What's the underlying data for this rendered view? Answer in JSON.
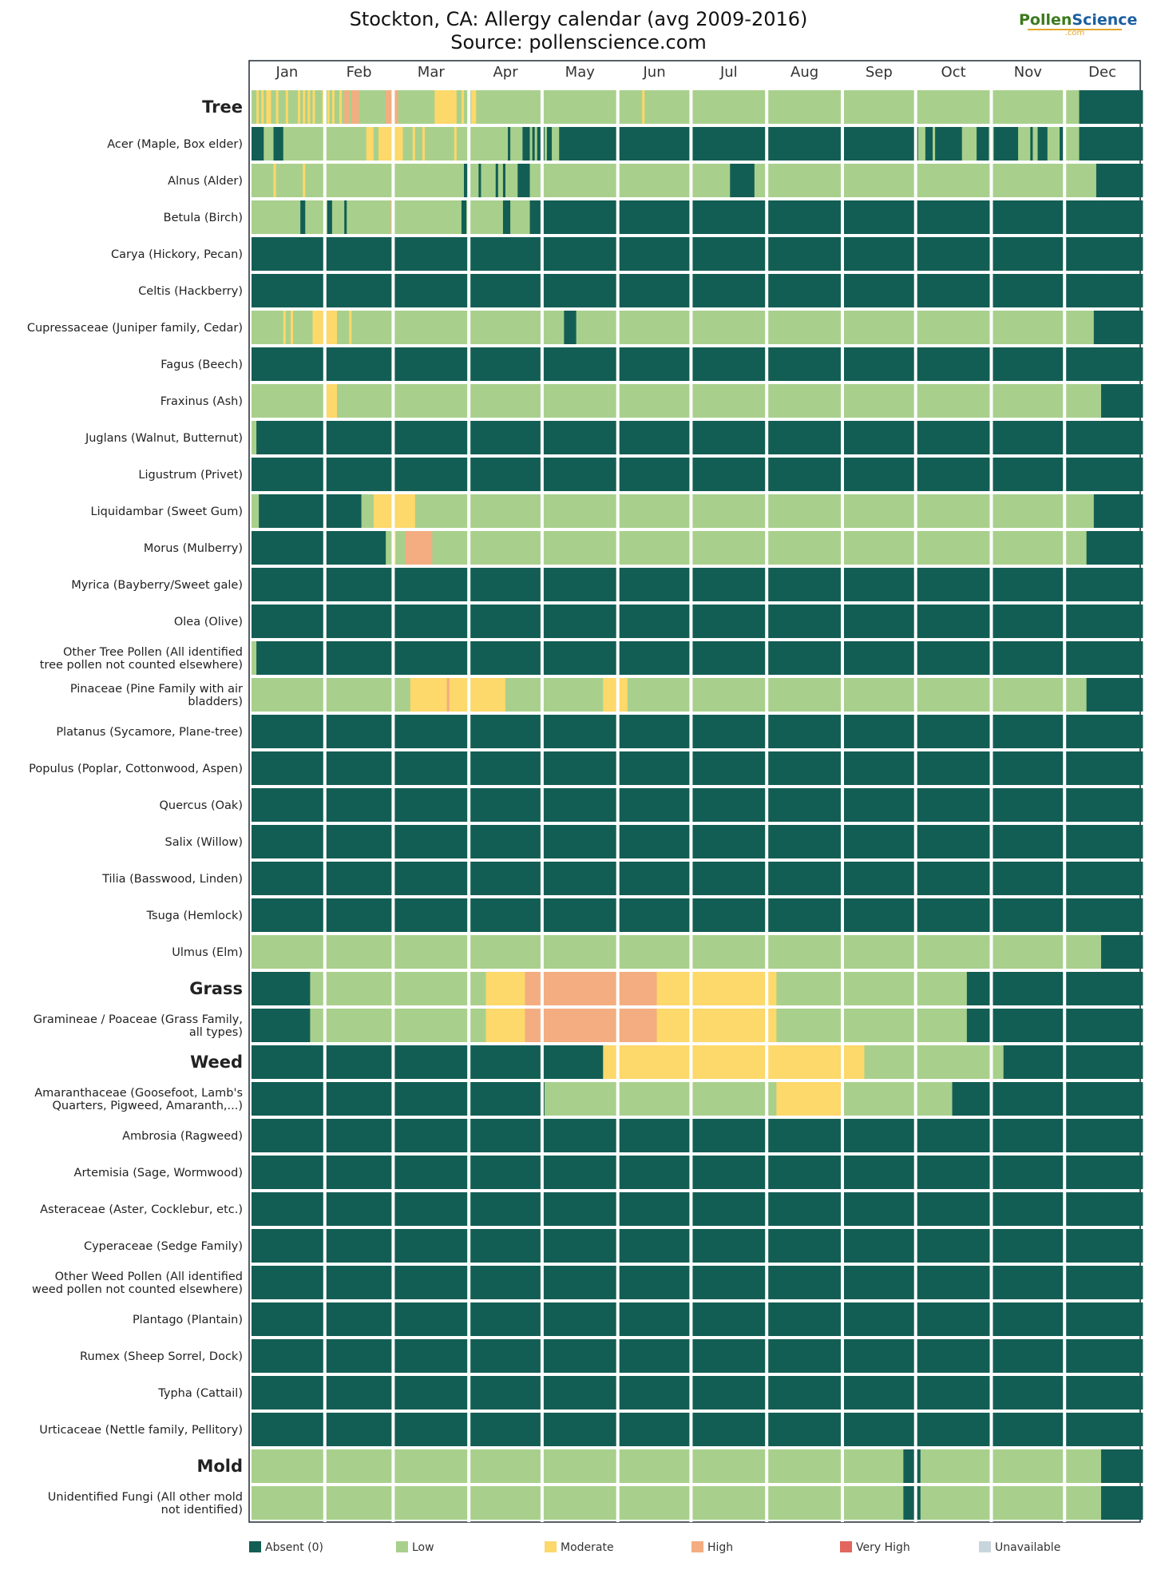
{
  "title_line1": "Stockton, CA: Allergy calendar (avg 2009-2016)",
  "title_line2": "Source: pollenscience.com",
  "logo": {
    "part1": "Pollen",
    "part2": "Science",
    "sub": ".com"
  },
  "colors": {
    "absent": "#135e54",
    "low": "#a8d08c",
    "moderate": "#fdd86a",
    "high": "#f3ad80",
    "very_high": "#e2655e",
    "unavailable": "#c9d5dc"
  },
  "legend": [
    "Absent (0)",
    "Low",
    "Moderate",
    "High",
    "Very High",
    "Unavailable"
  ],
  "chart_data": {
    "type": "heatmap",
    "level_scale": {
      "0": "Absent (0)",
      "1": "Low",
      "2": "Moderate",
      "3": "High",
      "4": "Very High",
      "5": "Unavailable"
    },
    "months": [
      "Jan",
      "Feb",
      "Mar",
      "Apr",
      "May",
      "Jun",
      "Jul",
      "Aug",
      "Sep",
      "Oct",
      "Nov",
      "Dec"
    ],
    "rows": [
      {
        "label": "Tree",
        "category": true,
        "levels": "112121221121112111121212121112121211213313331111111111133333111111111111111222222222112111221111111111111111111111111111111111111111111111111111111111111111111121111111111111111111111111111111111111111111111111111111111111111111111111111111111111111111111111111111111111111111111111111111111111111111111111111111111111111111111111111111111"
      },
      {
        "label": "Acer (Maple, Box elder)",
        "levels": "000001111000011111111111111111111111111111111112221122222222221111211121111111111112111111111111111111111011111000101000100111000000000000000000000000000000000000000000000000000000000000000000000000000000000000000000000000000000000000000000000000000000000000000000000000000111000100000000000111111000001100000000001111101100001111100111111"
      },
      {
        "label": "Alnus (Alder)",
        "levels": "1111111112111111111112111111111111111111111111111111111111111111111111111111111111111110011110111111011011111000001111111111111111111111111111111111111111111111111111111111111111111111111111111111000000000011111111111111111111111111111111111111111111111111111111111111111111111111111111111111111111111111111111111111111111111111111111111111111111"
      },
      {
        "label": "Betula (Birch)",
        "levels": "111111111111111111110011111111100111110111111111111111111311111111111111111111111111110011111111111111100011111111000000000000000000000000000000000000000000000000000000000000000000000000000000000000000000000000000000000000000000000000000000000000000000000000000000000000000000000000000000000000000000000000000000000000000000000000000000000000000000"
      },
      {
        "label": "Carya (Hickory, Pecan)",
        "levels": "000000000000000000000000000000000000000000000000000000000000000000000000000000000000000000000000000000000000000000000000000000000000000000000000000000000000000000000000000000000000000000000000000000000000000000000000000000000000000000000000000000000000000000000000000000000000000000000000000000000000000000000000000000000000000000000000000000000000"
      },
      {
        "label": "Celtis (Hackberry)",
        "levels": "000000000000000000000000000000000000000000000000000000000000000000000000000000000000000000000000000000000000000000000000000000000000000000000000000000000000000000000000000000000000000000000000000000000000000000000000000000000000000000000000000000000000000000000000000000000000000000000000000000000000000000000000000000000000000000000000000000000000"
      },
      {
        "label": "Cupressaceae (Juniper family, Cedar)",
        "levels": "111111111111121121111111122222222221111121111111111111111111111111111111111111111111111111111111111111111111111111111111111111110000011111111111111111111111111111111111111111111111111111111111111111111111111111111111111111111111111111111111111111111111111111111111111111111111111111111111111111111111111111111111111111111111111111111111111111111"
      },
      {
        "label": "Fagus (Beech)",
        "levels": "000000000000000000000000000000000000000000000000000000000000000000000000000000000000000000000000000000000000000000000000000000000000000000000000000000000000000000000000000000000000000000000000000000000000000000000000000000000000000000000000000000000000000000000000000000000000000000000000000000000000000000000000000000000000000000000000000000000000"
      },
      {
        "label": "Fraxinus (Ash)",
        "levels": "111111111111111111111111111111222221111111111111111111111111111111111111111111111111111111111111111111111111111111111111111111111111111111111111111111111111111111111111111111111111111111111111111111111111111111111111111111111111111111111111111111111111111111111111111111111111111111111111111111111111111111111111111111111111111111111111111111111111"
      },
      {
        "label": "Juglans (Walnut, Butternut)",
        "levels": "110000000000000000000000000000000000000000000000000000000000000000000000000000000000000000000000000000000000000000000000000000000000000000000000000000000000000000000000000000000000000000000000000000000000000000000000000000000000000000000000000000000000000000000000000000000000000000000000000000000000000000000000000000000000000000000000000000000000"
      },
      {
        "label": "Ligustrum (Privet)",
        "levels": "000000000000000000000000000000000000000000000000000000000000000000000000000000000000000000000000000000000000000000000000000000000000000000000000000000000000000000000000000000000000000000000000000000000000000000000000000000000000000000000000000000000000000000000000000000000000000000000000000000000000000000000000000000000000000000000000000000000000"
      },
      {
        "label": "Liquidambar (Sweet Gum)",
        "levels": "111000000000000000000000000000000000000000000111112222222222222222211111111111111111111111111111111111111111111111111111111111111111111111111111111111111111111111111111111111111111111111111111111111111111111111111111111111111111111111111111111111111111111111111111111111111111111111111111111111111111111111111111111111111111111111111111111111111"
      },
      {
        "label": "Morus (Mulberry)",
        "levels": "000000000000000000000000000000000000000000000000000000011121111333333333331111111111111111111111111111111111111111111111111111111111111111111111111111111111111111111111111111111111111111111111111111111111111111111111111111111111111111111111111111111111111111111111111111111111111111111111111111111111111111111111111111111111111111111111111111"
      },
      {
        "label": "Myrica (Bayberry/Sweet gale)",
        "levels": "000000000000000000000000000000000000000000000000000000000000000000000000000000000000000000000000000000000000000000000000000000000000000000000000000000000000000000000000000000000000000000000000000000000000000000000000000000000000000000000000000000000000000000000000000000000000000000000000000000000000000000000000000000000000000000000000000000000000"
      },
      {
        "label": "Olea (Olive)",
        "levels": "000000000000000000000000000000000000000000000000000000000000000000000000000000000000000000000000000000000000000000000000000000000000000000000000000000000000000000000000000000000000000000000000000000000000000000000000000000000000000000000000000000000000000000000000000000000000000000000000000000000000000000000000000000000000000000000000000000000000"
      },
      {
        "label": "Other Tree Pollen (All identified\ntree pollen not counted elsewhere)",
        "levels": "110000000000000000000000000000000000000000000000000000000000000000000000000000000000000000000000000000000000000000000000000000000000000000000000000000000000000000000000000000000000000000000000000000000000000000000000000000000000000000000000000000000000000000000000000000000000000000000000000000000000000000000000000000000000000000000000000000000000"
      },
      {
        "label": "Pinaceae (Pine Family with air\nbladders)",
        "levels": "111111111111111111111111111111111111111111111111111111111111111112222222222222223222222222222222222222221111111111111111111111111111111111111111222222222211111111111111111111111111111111111111111111111111111111111111111111111111111111111111111111111111111111111111111111111111111111111111111111111111111111111111111111111111111111111111111111"
      },
      {
        "label": "Platanus (Sycamore, Plane-tree)",
        "levels": "000000000000000000000000000000000000000000000000000000000000000000000000000000000000000000000000000000000000000000000000000000000000000000000000000000000000000000000000000000000000000000000000000000000000000000000000000000000000000000000000000000000000000000000000000000000000000000000000000000000000000000000000000000000000000000000000000000000000"
      },
      {
        "label": "Populus (Poplar, Cottonwood, Aspen)",
        "levels": "000000000000000000000000000000000000000000000000000000000000000000000000000000000000000000000000000000000000000000000000000000000000000000000000000000000000000000000000000000000000000000000000000000000000000000000000000000000000000000000000000000000000000000000000000000000000000000000000000000000000000000000000000000000000000000000000000000000000"
      },
      {
        "label": "Quercus (Oak)",
        "levels": "000000000000000000000000000000000000000000000000000000000000000000000000000000000000000000000000000000000000000000000000000000000000000000000000000000000000000000000000000000000000000000000000000000000000000000000000000000000000000000000000000000000000000000000000000000000000000000000000000000000000000000000000000000000000000000000000000000000000"
      },
      {
        "label": "Salix (Willow)",
        "levels": "000000000000000000000000000000000000000000000000000000000000000000000000000000000000000000000000000000000000000000000000000000000000000000000000000000000000000000000000000000000000000000000000000000000000000000000000000000000000000000000000000000000000000000000000000000000000000000000000000000000000000000000000000000000000000000000000000000000000"
      },
      {
        "label": "Tilia (Basswood, Linden)",
        "levels": "000000000000000000000000000000000000000000000000000000000000000000000000000000000000000000000000000000000000000000000000000000000000000000000000000000000000000000000000000000000000000000000000000000000000000000000000000000000000000000000000000000000000000000000000000000000000000000000000000000000000000000000000000000000000000000000000000000000000"
      },
      {
        "label": "Tsuga (Hemlock)",
        "levels": "000000000000000000000000000000000000000000000000000000000000000000000000000000000000000000000000000000000000000000000000000000000000000000000000000000000000000000000000000000000000000000000000000000000000000000000000000000000000000000000000000000000000000000000000000000000000000000000000000000000000000000000000000000000000000000000000000000000000"
      },
      {
        "label": "Ulmus (Elm)",
        "levels": "111111111111111111111111111111111111111111111111111111111111111111111111111111111111111111111111111111111111111111111111111111111111111111111111111111111111111111111111111111111111111111111111111111111111111111111111111111111111111111111111111111111111111111111111111111111111111111111111111111111111111111111111111111111111111111111111111111111111"
      },
      {
        "label": "Grass",
        "category": true,
        "levels": "000000000000000000000000111111111111111111111111111111111111111111111111111111111111111111111111222222222222222233333333333333333333333333333333333333333333333333333322222222222222222222222222222222222222222222222221111111111111111111111111111111111111111111111111111111111111111111111111111110000000000000000000000000000000000000000000000000000000"
      },
      {
        "label": "Gramineae / Poaceae (Grass Family,\nall types)",
        "levels": "000000000000000000000000111111111111111111111111111111111111111111111111111111111111111111111111222222222222222233333333333333333333333333333333333333333333333333333322222222222222222222222222222222222222222222222221111111111111111111111111111111111111111111111111111111111111111111111111111110000000000000000000000000000000000000000000000000000000"
      },
      {
        "label": "Weed",
        "category": true,
        "levels": "000000000000000000000000000000000000000000000000000000000000000000000000000000000000000000000000000000000000000000000000000000000000000000000000222222222222222222222222222222222222222222222222222222222222222222222222222222222222222222222222222222222221111111111111111111111111111111111111111111111111111111110000000000000000000000000000000000000"
      },
      {
        "label": "Amaranthaceae (Goosefoot, Lamb's\nQuarters, Pigweed, Amaranth,...)",
        "levels": "000000000000000000000000000000000000000000000000000000000000000000000000000000000000000000000000000000000000000000000000111111111111111111111111111111111111111111111111111111111111111111111111111111111111111111111112222222222222222222222222221111111111111111111111111111111111111111111110000000000000000000000000000000000000000000000000000000000"
      },
      {
        "label": "Ambrosia (Ragweed)",
        "levels": "000000000000000000000000000000000000000000000000000000000000000000000000000000000000000000000000000000000000000000000000000000000000000000000000000000000000000000000000000000000000000000000000000000000000000000000000000000000000000000000000000000000000000000000000000000000000000000000000000000000000000000000000000000000000000000000000000000000000"
      },
      {
        "label": "Artemisia (Sage, Wormwood)",
        "levels": "000000000000000000000000000000000000000000000000000000000000000000000000000000000000000000000000000000000000000000000000000000000000000000000000000000000000000000000000000000000000000000000000000000000000000000000000000000000000000000000000000000000000000000000000000000000000000000000000000000000000000000000000000000000000000000000000000000000000"
      },
      {
        "label": "Asteraceae (Aster, Cocklebur, etc.)",
        "levels": "000000000000000000000000000000000000000000000000000000000000000000000000000000000000000000000000000000000000000000000000000000000000000000000000000000000000000000000000000000000000000000000000000000000000000000000000000000000000000000000000000000000000000000000000000000000000000000000000000000000000000000000000000000000000000000000000000000000000"
      },
      {
        "label": "Cyperaceae (Sedge Family)",
        "levels": "000000000000000000000000000000000000000000000000000000000000000000000000000000000000000000000000000000000000000000000000000000000000000000000000000000000000000000000000000000000000000000000000000000000000000000000000000000000000000000000000000000000000000000000000000000000000000000000000000000000000000000000000000000000000000000000000000000000000"
      },
      {
        "label": "Other Weed Pollen (All identified\nweed pollen not counted elsewhere)",
        "levels": "000000000000000000000000000000000000000000000000000000000000000000000000000000000000000000000000000000000000000000000000000000000000000000000000000000000000000000000000000000000000000000000000000000000000000000000000000000000000000000000000000000000000000000000000000000000000000000000000000000000000000000000000000000000000000000000000000000000000"
      },
      {
        "label": "Plantago (Plantain)",
        "levels": "000000000000000000000000000000000000000000000000000000000000000000000000000000000000000000000000000000000000000000000000000000000000000000000000000000000000000000000000000000000000000000000000000000000000000000000000000000000000000000000000000000000000000000000000000000000000000000000000000000000000000000000000000000000000000000000000000000000000"
      },
      {
        "label": "Rumex (Sheep Sorrel, Dock)",
        "levels": "000000000000000000000000000000000000000000000000000000000000000000000000000000000000000000000000000000000000000000000000000000000000000000000000000000000000000000000000000000000000000000000000000000000000000000000000000000000000000000000000000000000000000000000000000000000000000000000000000000000000000000000000000000000000000000000000000000000000"
      },
      {
        "label": "Typha (Cattail)",
        "levels": "000000000000000000000000000000000000000000000000000000000000000000000000000000000000000000000000000000000000000000000000000000000000000000000000000000000000000000000000000000000000000000000000000000000000000000000000000000000000000000000000000000000000000000000000000000000000000000000000000000000000000000000000000000000000000000000000000000000000"
      },
      {
        "label": "Urticaceae (Nettle family, Pellitory)",
        "levels": "000000000000000000000000000000000000000000000000000000000000000000000000000000000000000000000000000000000000000000000000000000000000000000000000000000000000000000000000000000000000000000000000000000000000000000000000000000000000000000000000000000000000000000000000000000000000000000000000000000000000000000000000000000000000000000000000000000000000"
      },
      {
        "label": "Mold",
        "category": true,
        "levels": "111111111111111111111111111111111111111111111111111111111111111111111111111111111111111111111111111111111111111111111111111111111111111111111111111111111111111111111111111111111111111111111111111111111111111111111111111111111111111111111111111111111111111111111111111000000011111111111111111111111111111111111111111111111111111111111111111111111111"
      },
      {
        "label": "Unidentified Fungi (All other mold\nnot identified)",
        "levels": "111111111111111111111111111111111111111111111111111111111111111111111111111111111111111111111111111111111111111111111111111111111111111111111111111111111111111111111111111111111111111111111111111111111111111111111111111111111111111111111111111111111111111111111111111000000011111111111111111111111111111111111111111111111111111111111111111111111111"
      }
    ]
  }
}
